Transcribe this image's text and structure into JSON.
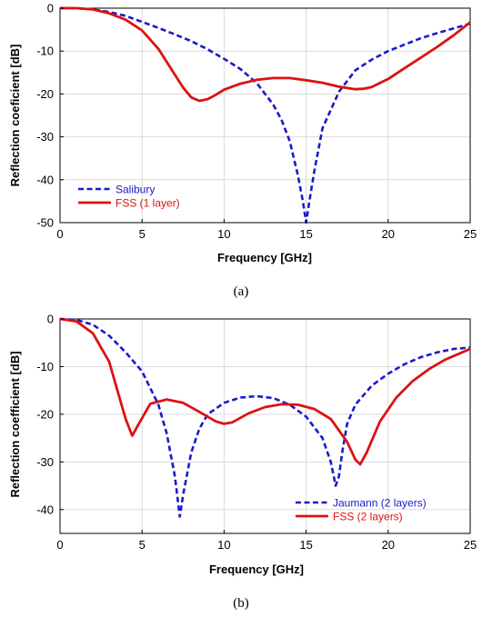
{
  "chart_data": [
    {
      "type": "line",
      "xlabel": "Frequency [GHz]",
      "ylabel": "Reflection coeficient [dB]",
      "xlim": [
        0,
        25
      ],
      "ylim": [
        -50,
        0
      ],
      "xticks": [
        "0",
        "5",
        "10",
        "15",
        "20",
        "25"
      ],
      "yticks": [
        "0",
        "-10",
        "-20",
        "-30",
        "-40",
        "-50"
      ],
      "grid": true,
      "legend_position": "bottom-left",
      "caption": "(a)",
      "series": [
        {
          "name": "Salibury",
          "color": "#1a1acc",
          "style": "dashed",
          "x": [
            0,
            1,
            2,
            3,
            4,
            5,
            6,
            7,
            8,
            9,
            10,
            11,
            12,
            13,
            13.5,
            14,
            14.5,
            14.8,
            15,
            15.2,
            15.5,
            16,
            17,
            18,
            19,
            20,
            21,
            22,
            23,
            24,
            25
          ],
          "y": [
            0,
            0,
            -0.3,
            -0.9,
            -1.8,
            -3.2,
            -4.6,
            -6.1,
            -7.7,
            -9.6,
            -11.8,
            -14.2,
            -17.5,
            -22.5,
            -26,
            -31,
            -39,
            -45,
            -50,
            -45,
            -38,
            -28,
            -19.5,
            -14.5,
            -12,
            -10,
            -8.5,
            -7,
            -5.8,
            -4.7,
            -3.6
          ]
        },
        {
          "name": "FSS (1 layer)",
          "color": "#dd1111",
          "style": "solid",
          "x": [
            0,
            1,
            2,
            3,
            4,
            5,
            6,
            7,
            7.5,
            8,
            8.5,
            9,
            9.5,
            10,
            11,
            12,
            13,
            14,
            15,
            16,
            17,
            18,
            18.5,
            19,
            20,
            21,
            22,
            23,
            24,
            25
          ],
          "y": [
            0,
            0,
            -0.3,
            -1.2,
            -2.7,
            -5.2,
            -9.5,
            -15.5,
            -18.5,
            -20.8,
            -21.6,
            -21.2,
            -20.2,
            -19.0,
            -17.6,
            -16.7,
            -16.3,
            -16.3,
            -16.8,
            -17.4,
            -18.3,
            -18.9,
            -18.8,
            -18.4,
            -16.5,
            -14,
            -11.5,
            -9,
            -6.3,
            -3.3
          ]
        }
      ]
    },
    {
      "type": "line",
      "xlabel": "Frequency [GHz]",
      "ylabel": "Reflection coefficient [dB]",
      "xlim": [
        0,
        25
      ],
      "ylim": [
        -45,
        0
      ],
      "xticks": [
        "0",
        "5",
        "10",
        "15",
        "20",
        "25"
      ],
      "yticks": [
        "0",
        "-10",
        "-20",
        "-30",
        "-40"
      ],
      "grid": true,
      "legend_position": "bottom-right",
      "caption": "(b)",
      "series": [
        {
          "name": "Jaumann (2 layers)",
          "color": "#1a1acc",
          "style": "dashed",
          "x": [
            0,
            1,
            2,
            3,
            4,
            5,
            6,
            6.5,
            7,
            7.3,
            7.5,
            8,
            8.5,
            9,
            10,
            11,
            12,
            13,
            14,
            15,
            16,
            16.5,
            16.8,
            17,
            17.2,
            17.5,
            18,
            19,
            20,
            21,
            22,
            23,
            24,
            25
          ],
          "y": [
            0,
            -0.2,
            -1.2,
            -3.5,
            -7,
            -11,
            -18,
            -24,
            -33,
            -41.5,
            -37,
            -28,
            -23,
            -20,
            -17.6,
            -16.5,
            -16.2,
            -16.6,
            -18,
            -20.5,
            -25,
            -30,
            -35,
            -33,
            -28,
            -22,
            -18,
            -14,
            -11.5,
            -9.5,
            -8,
            -7,
            -6.3,
            -6
          ]
        },
        {
          "name": "FSS (2 layers)",
          "color": "#dd1111",
          "style": "solid",
          "x": [
            0,
            1,
            2,
            3,
            3.5,
            4,
            4.4,
            4.8,
            5.5,
            6.5,
            7.5,
            8.5,
            9.5,
            10,
            10.5,
            11.5,
            12.5,
            13.5,
            14.5,
            15.5,
            16.5,
            17.5,
            18,
            18.3,
            18.7,
            19.5,
            20.5,
            21.5,
            22.5,
            23.5,
            25
          ],
          "y": [
            0,
            -0.5,
            -3,
            -9,
            -15,
            -21,
            -24.5,
            -22,
            -17.8,
            -16.9,
            -17.6,
            -19.5,
            -21.5,
            -22,
            -21.7,
            -19.8,
            -18.5,
            -17.9,
            -18,
            -18.9,
            -21,
            -25.8,
            -29.5,
            -30.5,
            -28,
            -21.5,
            -16.5,
            -13,
            -10.5,
            -8.5,
            -6.3
          ]
        }
      ]
    }
  ]
}
